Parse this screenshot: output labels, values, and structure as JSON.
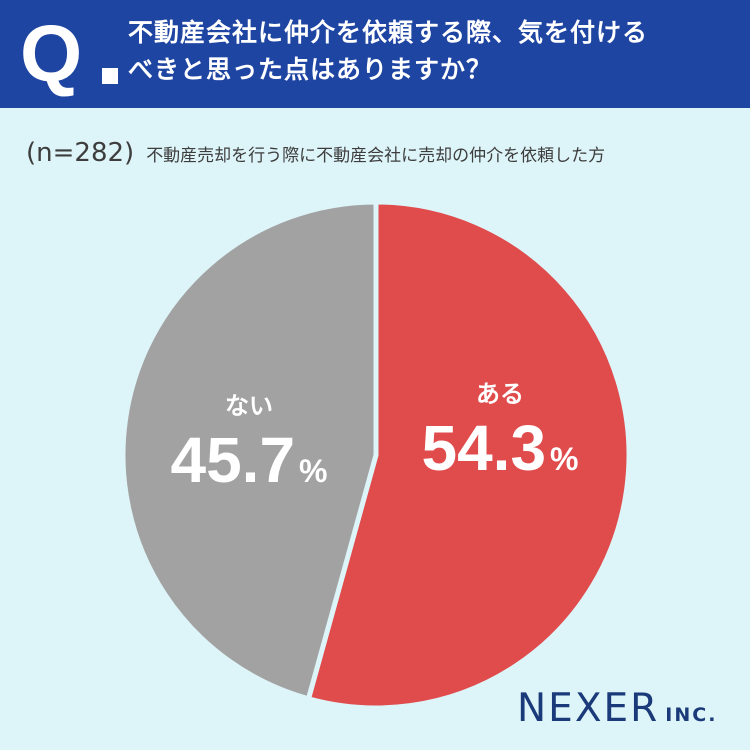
{
  "header": {
    "q_label": "Q",
    "question_line1": "不動産会社に仲介を依頼する際、気を付ける",
    "question_line2": "べきと思った点はありますか？",
    "bg_color": "#1f45a3"
  },
  "sample": {
    "n_label": "(n=282)",
    "description": "不動産売却を行う際に不動産会社に売却の仲介を依頼した方"
  },
  "logo": {
    "brand": "NEXER",
    "suffix": "INC."
  },
  "chart_data": {
    "type": "pie",
    "start_angle_deg": 0,
    "direction": "clockwise",
    "slices": [
      {
        "label": "ある",
        "value": 54.3,
        "display": "54.3",
        "unit": "%",
        "color": "#e04b4c"
      },
      {
        "label": "ない",
        "value": 45.7,
        "display": "45.7",
        "unit": "%",
        "color": "#a2a2a2"
      }
    ],
    "background_color": "#ddf4f8"
  }
}
